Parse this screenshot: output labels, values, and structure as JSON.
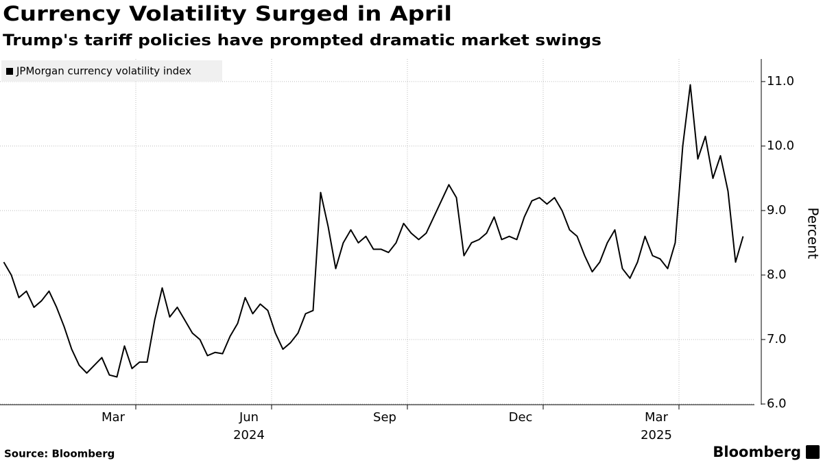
{
  "chart_data": {
    "type": "line",
    "title": "Currency Volatility Surged in April",
    "subtitle": "Trump's tariff policies have prompted dramatic market swings",
    "y_axis_label": "Percent",
    "source": "Source: Bloomberg",
    "logo": "Bloomberg",
    "x": [
      "2024-01",
      "2024-01",
      "2024-01",
      "2024-01",
      "2024-01",
      "2024-01",
      "2024-02",
      "2024-02",
      "2024-02",
      "2024-02",
      "2024-02",
      "2024-02",
      "2024-03",
      "2024-03",
      "2024-03",
      "2024-03",
      "2024-03",
      "2024-03",
      "2024-04",
      "2024-04",
      "2024-04",
      "2024-04",
      "2024-04",
      "2024-04",
      "2024-05",
      "2024-05",
      "2024-05",
      "2024-05",
      "2024-05",
      "2024-05",
      "2024-06",
      "2024-06",
      "2024-06",
      "2024-06",
      "2024-06",
      "2024-06",
      "2024-07",
      "2024-07",
      "2024-07",
      "2024-07",
      "2024-07",
      "2024-07",
      "2024-08",
      "2024-08",
      "2024-08",
      "2024-08",
      "2024-08",
      "2024-08",
      "2024-09",
      "2024-09",
      "2024-09",
      "2024-09",
      "2024-09",
      "2024-09",
      "2024-10",
      "2024-10",
      "2024-10",
      "2024-10",
      "2024-10",
      "2024-10",
      "2024-11",
      "2024-11",
      "2024-11",
      "2024-11",
      "2024-11",
      "2024-11",
      "2024-12",
      "2024-12",
      "2024-12",
      "2024-12",
      "2024-12",
      "2024-12",
      "2025-01",
      "2025-01",
      "2025-01",
      "2025-01",
      "2025-01",
      "2025-01",
      "2025-02",
      "2025-02",
      "2025-02",
      "2025-02",
      "2025-02",
      "2025-02",
      "2025-03",
      "2025-03",
      "2025-03",
      "2025-03",
      "2025-03",
      "2025-03",
      "2025-04",
      "2025-04",
      "2025-04",
      "2025-04",
      "2025-04",
      "2025-04",
      "2025-05",
      "2025-05",
      "2025-05"
    ],
    "series": [
      {
        "name": "JPMorgan currency volatility index",
        "color": "#000000",
        "values": [
          8.2,
          8.0,
          7.65,
          7.75,
          7.5,
          7.6,
          7.75,
          7.5,
          7.2,
          6.85,
          6.6,
          6.48,
          6.6,
          6.72,
          6.45,
          6.42,
          6.9,
          6.55,
          6.65,
          6.65,
          7.3,
          7.8,
          7.35,
          7.5,
          7.3,
          7.1,
          7.0,
          6.75,
          6.8,
          6.78,
          7.05,
          7.25,
          7.65,
          7.4,
          7.55,
          7.45,
          7.1,
          6.85,
          6.95,
          7.1,
          7.4,
          7.45,
          9.28,
          8.75,
          8.1,
          8.5,
          8.7,
          8.5,
          8.6,
          8.4,
          8.4,
          8.35,
          8.5,
          8.8,
          8.65,
          8.55,
          8.65,
          8.9,
          9.15,
          9.4,
          9.2,
          8.3,
          8.5,
          8.55,
          8.65,
          8.9,
          8.55,
          8.6,
          8.55,
          8.9,
          9.15,
          9.2,
          9.1,
          9.2,
          9.0,
          8.7,
          8.6,
          8.3,
          8.05,
          8.2,
          8.5,
          8.7,
          8.1,
          7.95,
          8.2,
          8.6,
          8.3,
          8.25,
          8.1,
          8.5,
          10.0,
          10.95,
          9.8,
          10.15,
          9.5,
          9.85,
          9.3,
          8.2,
          8.6
        ]
      }
    ],
    "xticks": [
      {
        "value": "2024-03",
        "label": "Mar"
      },
      {
        "value": "2024-06",
        "label": "Jun"
      },
      {
        "value": "2024-09",
        "label": "Sep"
      },
      {
        "value": "2024-12",
        "label": "Dec"
      },
      {
        "value": "2025-03",
        "label": "Mar"
      }
    ],
    "xyears": [
      {
        "value": "2024-06",
        "label": "2024"
      },
      {
        "value": "2025-03",
        "label": "2025"
      }
    ],
    "ylim": [
      6.0,
      11.35
    ],
    "yticks": [
      {
        "value": 6,
        "label": "6.0"
      },
      {
        "value": 7,
        "label": "7.0"
      },
      {
        "value": 8,
        "label": "8.0"
      },
      {
        "value": 9,
        "label": "9.0"
      },
      {
        "value": 10,
        "label": "10.0"
      },
      {
        "value": 11,
        "label": "11.0"
      }
    ],
    "grid": true,
    "legend": "top-left"
  }
}
